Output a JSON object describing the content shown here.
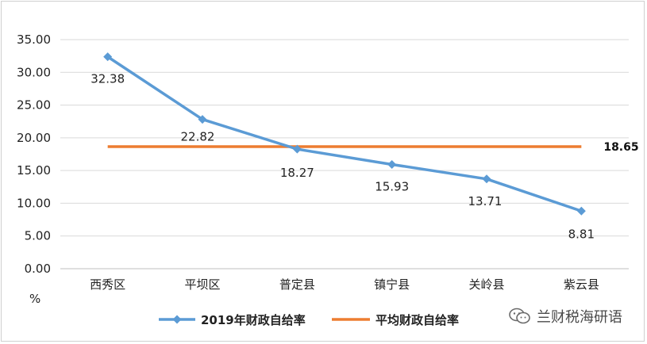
{
  "chart_data": {
    "type": "line",
    "categories": [
      "西秀区",
      "平坝区",
      "普定县",
      "镇宁县",
      "关岭县",
      "紫云县"
    ],
    "series": [
      {
        "name": "2019年财政自给率",
        "values": [
          32.38,
          22.82,
          18.27,
          15.93,
          13.71,
          8.81
        ],
        "color": "#5b9bd5",
        "marker": "diamond"
      },
      {
        "name": "平均财政自给率",
        "values": [
          18.65,
          18.65,
          18.65,
          18.65,
          18.65,
          18.65
        ],
        "color": "#ed7d31",
        "marker": "none"
      }
    ],
    "data_labels": [
      "32.38",
      "22.82",
      "18.27",
      "15.93",
      "13.71",
      "8.81"
    ],
    "average_label": "18.65",
    "ylabel": "%",
    "ylim": [
      0,
      35
    ],
    "yticks": [
      "0.00",
      "5.00",
      "10.00",
      "15.00",
      "20.00",
      "25.00",
      "30.00",
      "35.00"
    ],
    "grid": true,
    "legend": "bottom"
  },
  "watermark": {
    "text": "兰财税海研语",
    "icon": "wechat-icon"
  }
}
